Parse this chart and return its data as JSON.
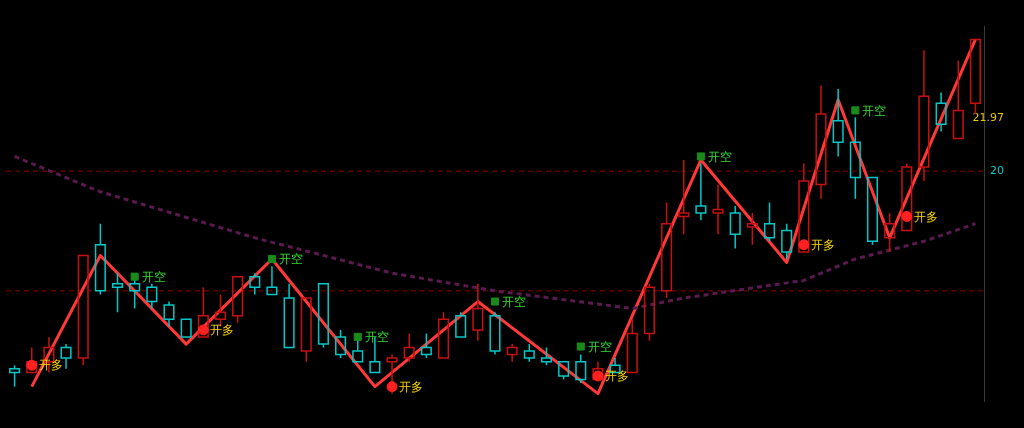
{
  "chart_data": {
    "type": "candlestick",
    "grid": false,
    "legend": false,
    "tick_labels": "y",
    "ylim": [
      11.4,
      25.4
    ],
    "yticks": [
      20,
      21.97
    ],
    "categories": [
      null,
      null,
      null,
      null,
      null,
      null,
      null,
      null,
      null,
      null,
      null,
      null,
      null,
      null,
      null,
      null,
      null,
      null,
      null,
      null,
      null,
      null,
      null,
      null,
      null,
      null,
      null,
      null,
      null,
      null,
      null,
      null,
      null,
      null,
      null,
      null,
      null,
      null,
      null,
      null,
      null,
      null,
      null,
      null,
      null,
      null,
      null,
      null,
      null,
      null,
      null,
      null,
      null,
      null,
      null,
      null,
      null
    ],
    "ohlc": [
      [
        12.62,
        12.75,
        11.95,
        12.48
      ],
      [
        12.48,
        13.41,
        12.48,
        12.88
      ],
      [
        12.88,
        13.81,
        12.48,
        13.41
      ],
      [
        13.41,
        13.54,
        12.62,
        13.02
      ],
      [
        13.02,
        16.85,
        12.75,
        16.85
      ],
      [
        17.25,
        18.04,
        15.39,
        15.53
      ],
      [
        15.79,
        16.19,
        14.73,
        15.66
      ],
      [
        15.79,
        15.92,
        14.87,
        15.53
      ],
      [
        15.66,
        15.79,
        14.87,
        15.13
      ],
      [
        15.0,
        15.13,
        14.2,
        14.47
      ],
      [
        14.47,
        14.47,
        13.81,
        13.81
      ],
      [
        13.81,
        15.66,
        13.81,
        14.6
      ],
      [
        14.47,
        15.39,
        14.2,
        14.73
      ],
      [
        14.6,
        16.06,
        14.34,
        16.06
      ],
      [
        16.06,
        16.19,
        15.39,
        15.66
      ],
      [
        15.66,
        16.45,
        15.39,
        15.39
      ],
      [
        15.26,
        15.79,
        13.41,
        13.41
      ],
      [
        13.28,
        15.26,
        12.88,
        15.26
      ],
      [
        15.79,
        15.79,
        13.41,
        13.54
      ],
      [
        13.81,
        14.07,
        13.02,
        13.15
      ],
      [
        13.28,
        13.67,
        12.88,
        12.88
      ],
      [
        12.88,
        13.81,
        12.48,
        12.48
      ],
      [
        12.88,
        13.15,
        11.69,
        13.02
      ],
      [
        13.02,
        13.94,
        12.88,
        13.41
      ],
      [
        13.41,
        13.94,
        13.02,
        13.15
      ],
      [
        13.02,
        14.73,
        13.02,
        14.47
      ],
      [
        14.6,
        14.73,
        13.81,
        13.81
      ],
      [
        14.07,
        15.79,
        13.67,
        14.87
      ],
      [
        14.6,
        14.73,
        13.15,
        13.28
      ],
      [
        13.15,
        13.54,
        12.88,
        13.41
      ],
      [
        13.28,
        13.54,
        12.88,
        13.02
      ],
      [
        13.02,
        13.41,
        12.75,
        12.88
      ],
      [
        12.88,
        12.88,
        12.22,
        12.35
      ],
      [
        12.88,
        13.15,
        12.09,
        12.22
      ],
      [
        12.22,
        12.88,
        12.22,
        12.62
      ],
      [
        12.75,
        13.02,
        12.48,
        12.48
      ],
      [
        12.48,
        14.47,
        12.48,
        13.94
      ],
      [
        13.94,
        15.79,
        13.67,
        15.66
      ],
      [
        15.53,
        18.83,
        15.26,
        18.04
      ],
      [
        18.31,
        20.42,
        17.64,
        18.44
      ],
      [
        18.7,
        20.29,
        18.17,
        18.44
      ],
      [
        18.44,
        19.5,
        17.64,
        18.57
      ],
      [
        18.44,
        18.7,
        17.11,
        17.64
      ],
      [
        17.91,
        18.44,
        17.25,
        18.04
      ],
      [
        18.04,
        18.83,
        17.38,
        17.51
      ],
      [
        17.78,
        18.04,
        16.72,
        16.98
      ],
      [
        16.98,
        20.29,
        16.98,
        19.63
      ],
      [
        19.5,
        23.2,
        18.97,
        22.14
      ],
      [
        21.88,
        23.07,
        20.55,
        21.08
      ],
      [
        21.08,
        22.01,
        18.97,
        19.76
      ],
      [
        19.76,
        19.76,
        17.25,
        17.38
      ],
      [
        17.51,
        18.44,
        16.98,
        18.04
      ],
      [
        17.78,
        20.29,
        17.78,
        20.16
      ],
      [
        20.16,
        24.52,
        19.63,
        22.8
      ],
      [
        22.54,
        22.94,
        21.48,
        21.75
      ],
      [
        21.22,
        24.13,
        21.22,
        22.27
      ],
      [
        22.54,
        24.92,
        22.14,
        24.92
      ]
    ],
    "colors": [
      "#00c8c8",
      "#c81010",
      "#c81010",
      "#00c8c8",
      "#c81010",
      "#00c8c8",
      "#00c8c8",
      "#00c8c8",
      "#00c8c8",
      "#00c8c8",
      "#00c8c8",
      "#c81010",
      "#c81010",
      "#c81010",
      "#00c8c8",
      "#00c8c8",
      "#00c8c8",
      "#c81010",
      "#00c8c8",
      "#00c8c8",
      "#00c8c8",
      "#00c8c8",
      "#c81010",
      "#c81010",
      "#00c8c8",
      "#c81010",
      "#00c8c8",
      "#c81010",
      "#00c8c8",
      "#c81010",
      "#00c8c8",
      "#00c8c8",
      "#00c8c8",
      "#00c8c8",
      "#c81010",
      "#00c8c8",
      "#c81010",
      "#c81010",
      "#c81010",
      "#c81010",
      "#00c8c8",
      "#c81010",
      "#00c8c8",
      "#c81010",
      "#00c8c8",
      "#00c8c8",
      "#c81010",
      "#c81010",
      "#00c8c8",
      "#00c8c8",
      "#00c8c8",
      "#c81010",
      "#c81010",
      "#c81010",
      "#00c8c8",
      "#c81010",
      "#c81010"
    ],
    "series": [
      {
        "type": "line",
        "color": "#5a1a50",
        "line_style": "dashed",
        "marker": "none",
        "values": [
          20.55,
          null,
          null,
          null,
          null,
          19.23,
          null,
          null,
          null,
          null,
          null,
          null,
          null,
          null,
          17.51,
          null,
          null,
          null,
          null,
          null,
          null,
          null,
          16.19,
          null,
          null,
          null,
          null,
          null,
          15.53,
          null,
          null,
          null,
          null,
          null,
          null,
          null,
          14.87,
          null,
          null,
          15.26,
          null,
          null,
          null,
          null,
          null,
          null,
          15.92,
          null,
          null,
          16.72,
          null,
          null,
          null,
          17.38,
          null,
          null,
          18.04
        ]
      },
      {
        "type": "line",
        "color": "#ff3838",
        "line_style": "solid",
        "marker": "none",
        "values": [
          null,
          11.95,
          null,
          null,
          null,
          16.85,
          null,
          null,
          null,
          null,
          13.54,
          null,
          null,
          null,
          null,
          16.72,
          null,
          null,
          null,
          null,
          null,
          11.95,
          null,
          null,
          null,
          null,
          null,
          15.13,
          null,
          null,
          null,
          null,
          null,
          null,
          11.69,
          null,
          null,
          null,
          null,
          null,
          20.42,
          null,
          null,
          null,
          null,
          16.59,
          null,
          null,
          22.67,
          null,
          null,
          17.51,
          null,
          null,
          null,
          null,
          24.92
        ]
      },
      {
        "type": "scatter",
        "color": "#ff2020",
        "marker": "circle",
        "values": [
          null,
          12.75,
          null,
          null,
          null,
          null,
          null,
          null,
          null,
          null,
          null,
          14.07,
          null,
          null,
          null,
          null,
          null,
          null,
          null,
          null,
          null,
          null,
          11.95,
          null,
          null,
          null,
          null,
          null,
          null,
          null,
          null,
          null,
          null,
          null,
          12.35,
          null,
          null,
          null,
          null,
          null,
          null,
          null,
          null,
          null,
          null,
          null,
          17.25,
          null,
          null,
          null,
          null,
          null,
          18.31,
          null,
          null,
          null,
          null
        ],
        "value_labels": [
          null,
          "开多",
          null,
          null,
          null,
          null,
          null,
          null,
          null,
          null,
          null,
          "开多",
          null,
          null,
          null,
          null,
          null,
          null,
          null,
          null,
          null,
          null,
          "开多",
          null,
          null,
          null,
          null,
          null,
          null,
          null,
          null,
          null,
          null,
          null,
          "开多",
          null,
          null,
          null,
          null,
          null,
          null,
          null,
          null,
          null,
          null,
          null,
          "开多",
          null,
          null,
          null,
          null,
          null,
          "开多",
          null,
          null,
          null,
          null
        ]
      },
      {
        "type": "scatter",
        "color": "#1a8a1a",
        "marker": "square",
        "values": [
          null,
          null,
          null,
          null,
          null,
          null,
          null,
          16.06,
          null,
          null,
          null,
          null,
          null,
          null,
          null,
          16.72,
          null,
          null,
          null,
          null,
          13.81,
          null,
          null,
          null,
          null,
          null,
          null,
          null,
          15.13,
          null,
          null,
          null,
          null,
          13.45,
          null,
          null,
          null,
          null,
          null,
          null,
          20.55,
          null,
          null,
          null,
          null,
          null,
          null,
          null,
          null,
          22.27,
          null,
          null,
          null,
          null,
          null,
          null,
          null
        ],
        "value_labels": [
          null,
          null,
          null,
          null,
          null,
          null,
          null,
          "开空",
          null,
          null,
          null,
          null,
          null,
          null,
          null,
          "开空",
          null,
          null,
          null,
          null,
          "开空",
          null,
          null,
          null,
          null,
          null,
          null,
          null,
          "开空",
          null,
          null,
          null,
          null,
          "开空",
          null,
          null,
          null,
          null,
          null,
          null,
          "开空",
          null,
          null,
          null,
          null,
          null,
          null,
          null,
          null,
          "开空",
          null,
          null,
          null,
          null,
          null,
          null,
          null
        ]
      }
    ],
    "ref_lines": [
      {
        "axis": "y",
        "value": 20,
        "label": null,
        "color": "#8b0000",
        "line_style": "dashed"
      },
      {
        "axis": "y",
        "value": 15.53,
        "label": null,
        "color": "#8b0000",
        "line_style": "dashed"
      }
    ]
  }
}
